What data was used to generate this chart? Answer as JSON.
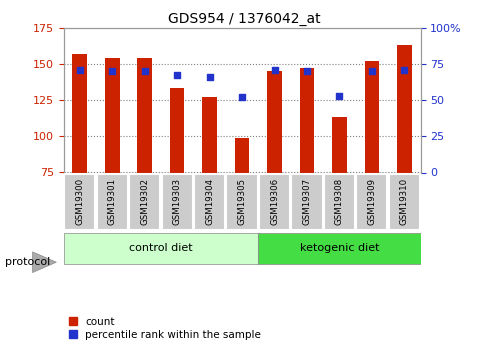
{
  "title": "GDS954 / 1376042_at",
  "samples": [
    "GSM19300",
    "GSM19301",
    "GSM19302",
    "GSM19303",
    "GSM19304",
    "GSM19305",
    "GSM19306",
    "GSM19307",
    "GSM19308",
    "GSM19309",
    "GSM19310"
  ],
  "count_values": [
    157,
    154,
    154,
    133,
    127,
    99,
    145,
    147,
    113,
    152,
    163
  ],
  "percentile_values": [
    71,
    70,
    70,
    67,
    66,
    52,
    71,
    70,
    53,
    70,
    71
  ],
  "ylim_left": [
    75,
    175
  ],
  "ylim_right": [
    0,
    100
  ],
  "yticks_left": [
    75,
    100,
    125,
    150,
    175
  ],
  "yticks_right": [
    0,
    25,
    50,
    75,
    100
  ],
  "bar_color": "#cc2200",
  "dot_color": "#2233cc",
  "bar_bottom": 75,
  "groups": [
    {
      "label": "control diet",
      "indices": [
        0,
        5
      ],
      "color": "#ccffcc"
    },
    {
      "label": "ketogenic diet",
      "indices": [
        6,
        10
      ],
      "color": "#44dd44"
    }
  ],
  "protocol_label": "protocol",
  "legend_items": [
    {
      "label": "count",
      "color": "#cc2200"
    },
    {
      "label": "percentile rank within the sample",
      "color": "#2233cc"
    }
  ],
  "tick_label_bg": "#cccccc",
  "title_fontsize": 10,
  "tick_fontsize": 8,
  "label_fontsize": 8
}
